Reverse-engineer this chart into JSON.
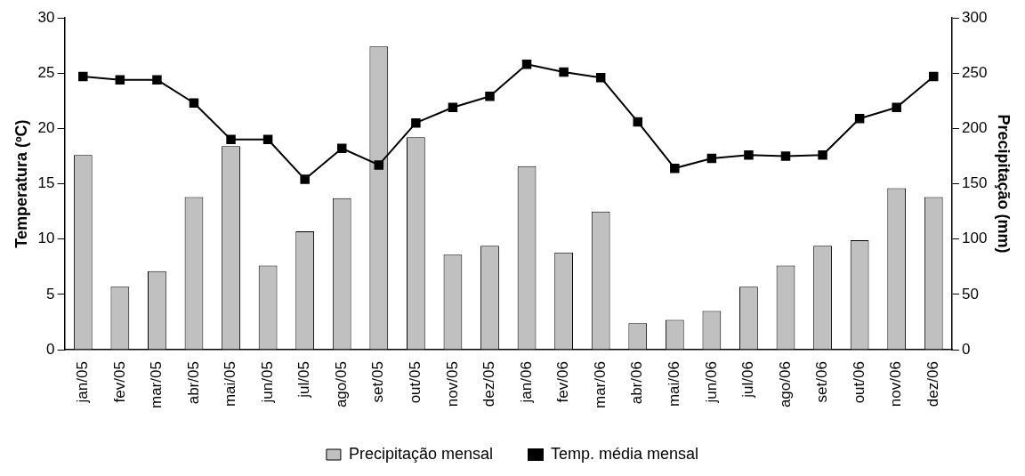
{
  "chart_data": {
    "type": "bar",
    "categories": [
      "jan/05",
      "fev/05",
      "mar/05",
      "abr/05",
      "mai/05",
      "jun/05",
      "jul/05",
      "ago/05",
      "set/05",
      "out/05",
      "nov/05",
      "dez/05",
      "jan/06",
      "fev/06",
      "mar/06",
      "abr/06",
      "mai/06",
      "jun/06",
      "jul/06",
      "ago/06",
      "set/06",
      "out/06",
      "nov/06",
      "dez/06"
    ],
    "series": [
      {
        "name": "Precipitação mensal",
        "axis": "y2",
        "color": "#c0c0c0",
        "values": [
          176,
          57,
          71,
          138,
          184,
          76,
          107,
          137,
          274,
          192,
          86,
          94,
          166,
          88,
          125,
          24,
          27,
          35,
          57,
          76,
          94,
          99,
          146,
          138
        ]
      },
      {
        "name": "Temp. média mensal",
        "type": "line",
        "color": "#000000",
        "values": [
          24.7,
          24.4,
          24.4,
          22.3,
          19,
          19,
          15.4,
          18.2,
          16.7,
          20.5,
          21.9,
          22.9,
          25.8,
          25.1,
          24.6,
          20.6,
          16.4,
          17.3,
          17.6,
          17.5,
          17.6,
          20.9,
          21.9,
          24.7
        ]
      }
    ],
    "ylabel": "Temperatura (ºC)",
    "y2label": "Precipitação (mm)",
    "ylim": [
      0,
      30
    ],
    "yticks": [
      0,
      5,
      10,
      15,
      20,
      25,
      30
    ],
    "y2lim": [
      0,
      300
    ],
    "y2ticks": [
      0,
      50,
      100,
      150,
      200,
      250,
      300
    ],
    "marker": "square",
    "line_style": "solid",
    "grid": false,
    "legend": "bottom"
  }
}
